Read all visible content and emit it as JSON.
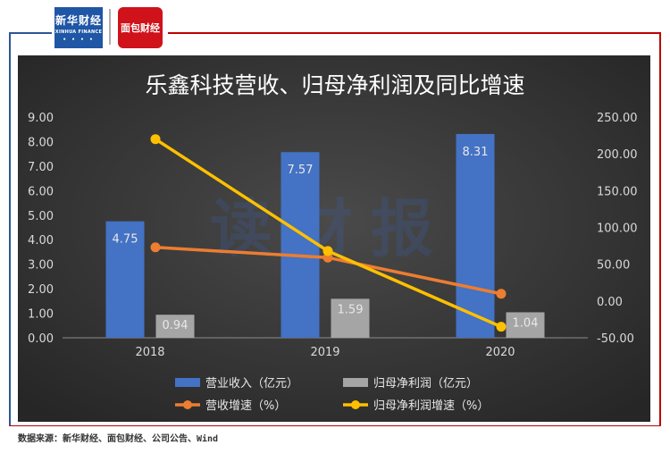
{
  "header": {
    "logo_left": {
      "name": "xinhua-finance",
      "text_cn": "新华财经",
      "text_en": "XINHUA FINANCE"
    },
    "logo_right": {
      "name": "mianbao-caijing",
      "text": "面包财经"
    }
  },
  "footer": {
    "source": "数据来源：新华财经、面包财经、公司公告、Wind"
  },
  "colors": {
    "frame_blue": "#2f5597",
    "frame_red": "#c00000",
    "plot_bg": "#2e2e2e",
    "revenue": "#4472c4",
    "profit": "#a5a5a5",
    "revenue_growth": "#ed7d31",
    "profit_growth": "#ffc000"
  },
  "chart_data": {
    "type": "bar",
    "title": "乐鑫科技营收、归母净利润及同比增速",
    "categories": [
      "2018",
      "2019",
      "2020"
    ],
    "y_left": {
      "range": [
        0,
        9
      ],
      "ticks": [
        "0.00",
        "1.00",
        "2.00",
        "3.00",
        "4.00",
        "5.00",
        "6.00",
        "7.00",
        "8.00",
        "9.00"
      ]
    },
    "y_right": {
      "range": [
        -50,
        250
      ],
      "ticks": [
        "-50.00",
        "0.00",
        "50.00",
        "100.00",
        "150.00",
        "200.00",
        "250.00"
      ]
    },
    "series": [
      {
        "name": "营业收入（亿元）",
        "kind": "bar",
        "axis": "left",
        "values": [
          4.75,
          7.57,
          8.31
        ],
        "labels": [
          "4.75",
          "7.57",
          "8.31"
        ]
      },
      {
        "name": "归母净利润（亿元）",
        "kind": "bar",
        "axis": "left",
        "values": [
          0.94,
          1.59,
          1.04
        ],
        "labels": [
          "0.94",
          "1.59",
          "1.04"
        ]
      },
      {
        "name": "营收增速（%）",
        "kind": "line",
        "axis": "right",
        "values": [
          73.0,
          59.0,
          9.8
        ]
      },
      {
        "name": "归母净利润增速（%）",
        "kind": "line",
        "axis": "right",
        "values": [
          220.0,
          68.0,
          -35.0
        ]
      }
    ],
    "legend": {
      "position": "bottom"
    },
    "grid": false,
    "watermark": "读财报"
  }
}
